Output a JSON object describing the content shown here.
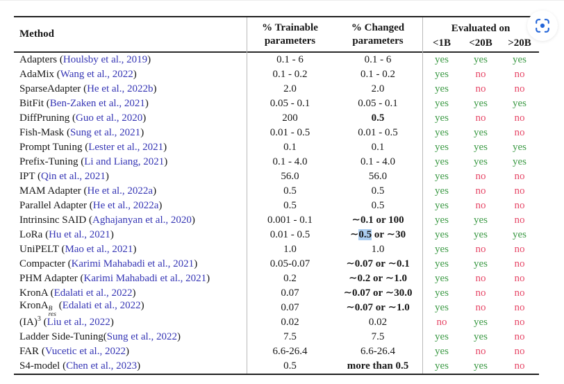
{
  "icons": {
    "visual_search": {
      "name": "visual-search-icon",
      "color": "#2365d8"
    }
  },
  "table": {
    "colors": {
      "yes": "#3c9a45",
      "no": "#e64666",
      "citation": "#3434b4",
      "highlight": "#aacdf0"
    },
    "header": {
      "method": "Method",
      "trainable_line1": "% Trainable",
      "trainable_line2": "parameters",
      "changed_line1": "% Changed",
      "changed_line2": "parameters",
      "evaluated_on": "Evaluated on",
      "eval_cols": [
        "<1B",
        "<20B",
        ">20B"
      ]
    },
    "rows": [
      {
        "name": "Adapters",
        "citation": "Houlsby et al., 2019",
        "trainable": "0.1 - 6",
        "changed": "0.1 - 6",
        "eval": [
          "yes",
          "yes",
          "yes"
        ]
      },
      {
        "name": "AdaMix",
        "citation": "Wang et al., 2022",
        "trainable": "0.1 - 0.2",
        "changed": "0.1 - 0.2",
        "eval": [
          "yes",
          "no",
          "no"
        ]
      },
      {
        "name": "SparseAdapter",
        "citation": "He et al., 2022b",
        "trainable": "2.0",
        "changed": "2.0",
        "eval": [
          "yes",
          "no",
          "no"
        ]
      },
      {
        "name": "BitFit",
        "citation": "Ben-Zaken et al., 2021",
        "trainable": "0.05 - 0.1",
        "changed": "0.05 - 0.1",
        "eval": [
          "yes",
          "yes",
          "yes"
        ]
      },
      {
        "name": "DiffPruning",
        "citation": "Guo et al., 2020",
        "trainable": "200",
        "changed": "0.5",
        "changed_bold": true,
        "eval": [
          "yes",
          "no",
          "no"
        ]
      },
      {
        "name": "Fish-Mask",
        "citation": "Sung et al., 2021",
        "trainable": "0.01 - 0.5",
        "changed": "0.01 - 0.5",
        "eval": [
          "yes",
          "yes",
          "no"
        ]
      },
      {
        "name": "Prompt Tuning",
        "citation": "Lester et al., 2021",
        "trainable": "0.1",
        "changed": "0.1",
        "eval": [
          "yes",
          "yes",
          "yes"
        ]
      },
      {
        "name": "Prefix-Tuning",
        "citation": "Li and Liang, 2021",
        "trainable": "0.1 - 4.0",
        "changed": "0.1 - 4.0",
        "eval": [
          "yes",
          "yes",
          "yes"
        ]
      },
      {
        "name": "IPT",
        "citation": "Qin et al., 2021",
        "trainable": "56.0",
        "changed": "56.0",
        "eval": [
          "yes",
          "no",
          "no"
        ]
      },
      {
        "name": "MAM Adapter",
        "citation": "He et al., 2022a",
        "trainable": "0.5",
        "changed": "0.5",
        "eval": [
          "yes",
          "no",
          "no"
        ]
      },
      {
        "name": "Parallel Adapter",
        "citation": "He et al., 2022a",
        "trainable": "0.5",
        "changed": "0.5",
        "eval": [
          "yes",
          "no",
          "no"
        ]
      },
      {
        "name": "Intrinsinc SAID",
        "citation": "Aghajanyan et al., 2020",
        "trainable": "0.001 - 0.1",
        "changed": "∼0.1 or 100",
        "changed_bold": true,
        "eval": [
          "yes",
          "yes",
          "no"
        ]
      },
      {
        "name": "LoRa",
        "citation": "Hu et al., 2021",
        "trainable": "0.01 - 0.5",
        "changed": "∼0.5 or ∼30",
        "changed_bold": true,
        "changed_parts": [
          {
            "t": "∼"
          },
          {
            "t": "0.5",
            "hl": true
          },
          {
            "t": " or ∼30"
          }
        ],
        "eval": [
          "yes",
          "yes",
          "yes"
        ]
      },
      {
        "name": "UniPELT",
        "citation": "Mao et al., 2021",
        "trainable": "1.0",
        "changed": "1.0",
        "eval": [
          "yes",
          "no",
          "no"
        ]
      },
      {
        "name": "Compacter",
        "citation": "Karimi Mahabadi et al., 2021",
        "trainable": "0.05-0.07",
        "changed": "∼0.07 or ∼0.1",
        "changed_bold": true,
        "eval": [
          "yes",
          "yes",
          "no"
        ]
      },
      {
        "name": "PHM Adapter",
        "citation": "Karimi Mahabadi et al., 2021",
        "trainable": "0.2",
        "changed": "∼0.2 or ∼1.0",
        "changed_bold": true,
        "eval": [
          "yes",
          "no",
          "no"
        ]
      },
      {
        "name": "KronA",
        "citation": "Edalati et al., 2022",
        "trainable": "0.07",
        "changed": "∼0.07 or ∼30.0",
        "changed_bold": true,
        "eval": [
          "yes",
          "no",
          "no"
        ]
      },
      {
        "name": "KronA",
        "sup": "B",
        "sub": "res",
        "citation": "Edalati et al., 2022",
        "trainable": "0.07",
        "changed": "∼0.07 or ∼1.0",
        "changed_bold": true,
        "eval": [
          "yes",
          "no",
          "no"
        ]
      },
      {
        "name": "(IA)",
        "sup": "3",
        "citation": "Liu et al., 2022",
        "trainable": "0.02",
        "changed": "0.02",
        "eval": [
          "no",
          "yes",
          "no"
        ]
      },
      {
        "name": "Ladder Side-Tuning",
        "nospace": true,
        "citation": "Sung et al., 2022",
        "trainable": "7.5",
        "changed": "7.5",
        "eval": [
          "yes",
          "yes",
          "no"
        ]
      },
      {
        "name": "FAR",
        "citation": "Vucetic et al., 2022",
        "trainable": "6.6-26.4",
        "changed": "6.6-26.4",
        "eval": [
          "yes",
          "no",
          "no"
        ]
      },
      {
        "name": "S4-model",
        "citation": "Chen et al., 2023",
        "trainable": "0.5",
        "changed": "more than 0.5",
        "changed_bold": true,
        "eval": [
          "yes",
          "yes",
          "no"
        ]
      }
    ]
  }
}
